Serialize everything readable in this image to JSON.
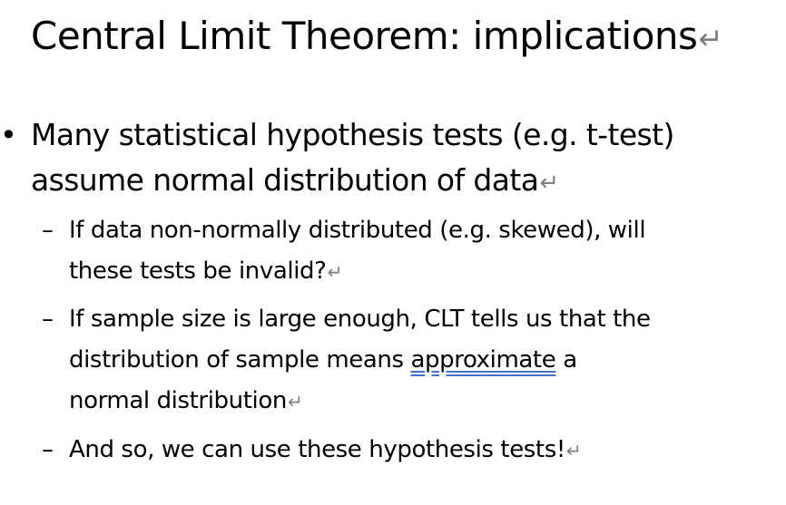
{
  "title": "Central Limit Theorem: implications",
  "paragraph_mark": "↵",
  "bullet": {
    "marker": "•",
    "line1": "Many statistical hypothesis tests (e.g. t-test)",
    "line2": "assume normal distribution of data"
  },
  "sub_dash": "–",
  "sub_bullets": [
    {
      "line1": "If data non-normally distributed (e.g. skewed), will",
      "line2": "these tests be invalid?"
    },
    {
      "line1": "If sample size is large enough, CLT tells us that the",
      "line2_before": "distribution of sample means ",
      "line2_flagged": "approximate",
      "line2_after": " a",
      "line3": "normal distribution"
    },
    {
      "line1": "And so, we can use these hypothesis tests!"
    }
  ],
  "colors": {
    "text": "#000000",
    "paragraph_mark": "#7f7f7f",
    "grammar_underline": "#4472c4"
  }
}
